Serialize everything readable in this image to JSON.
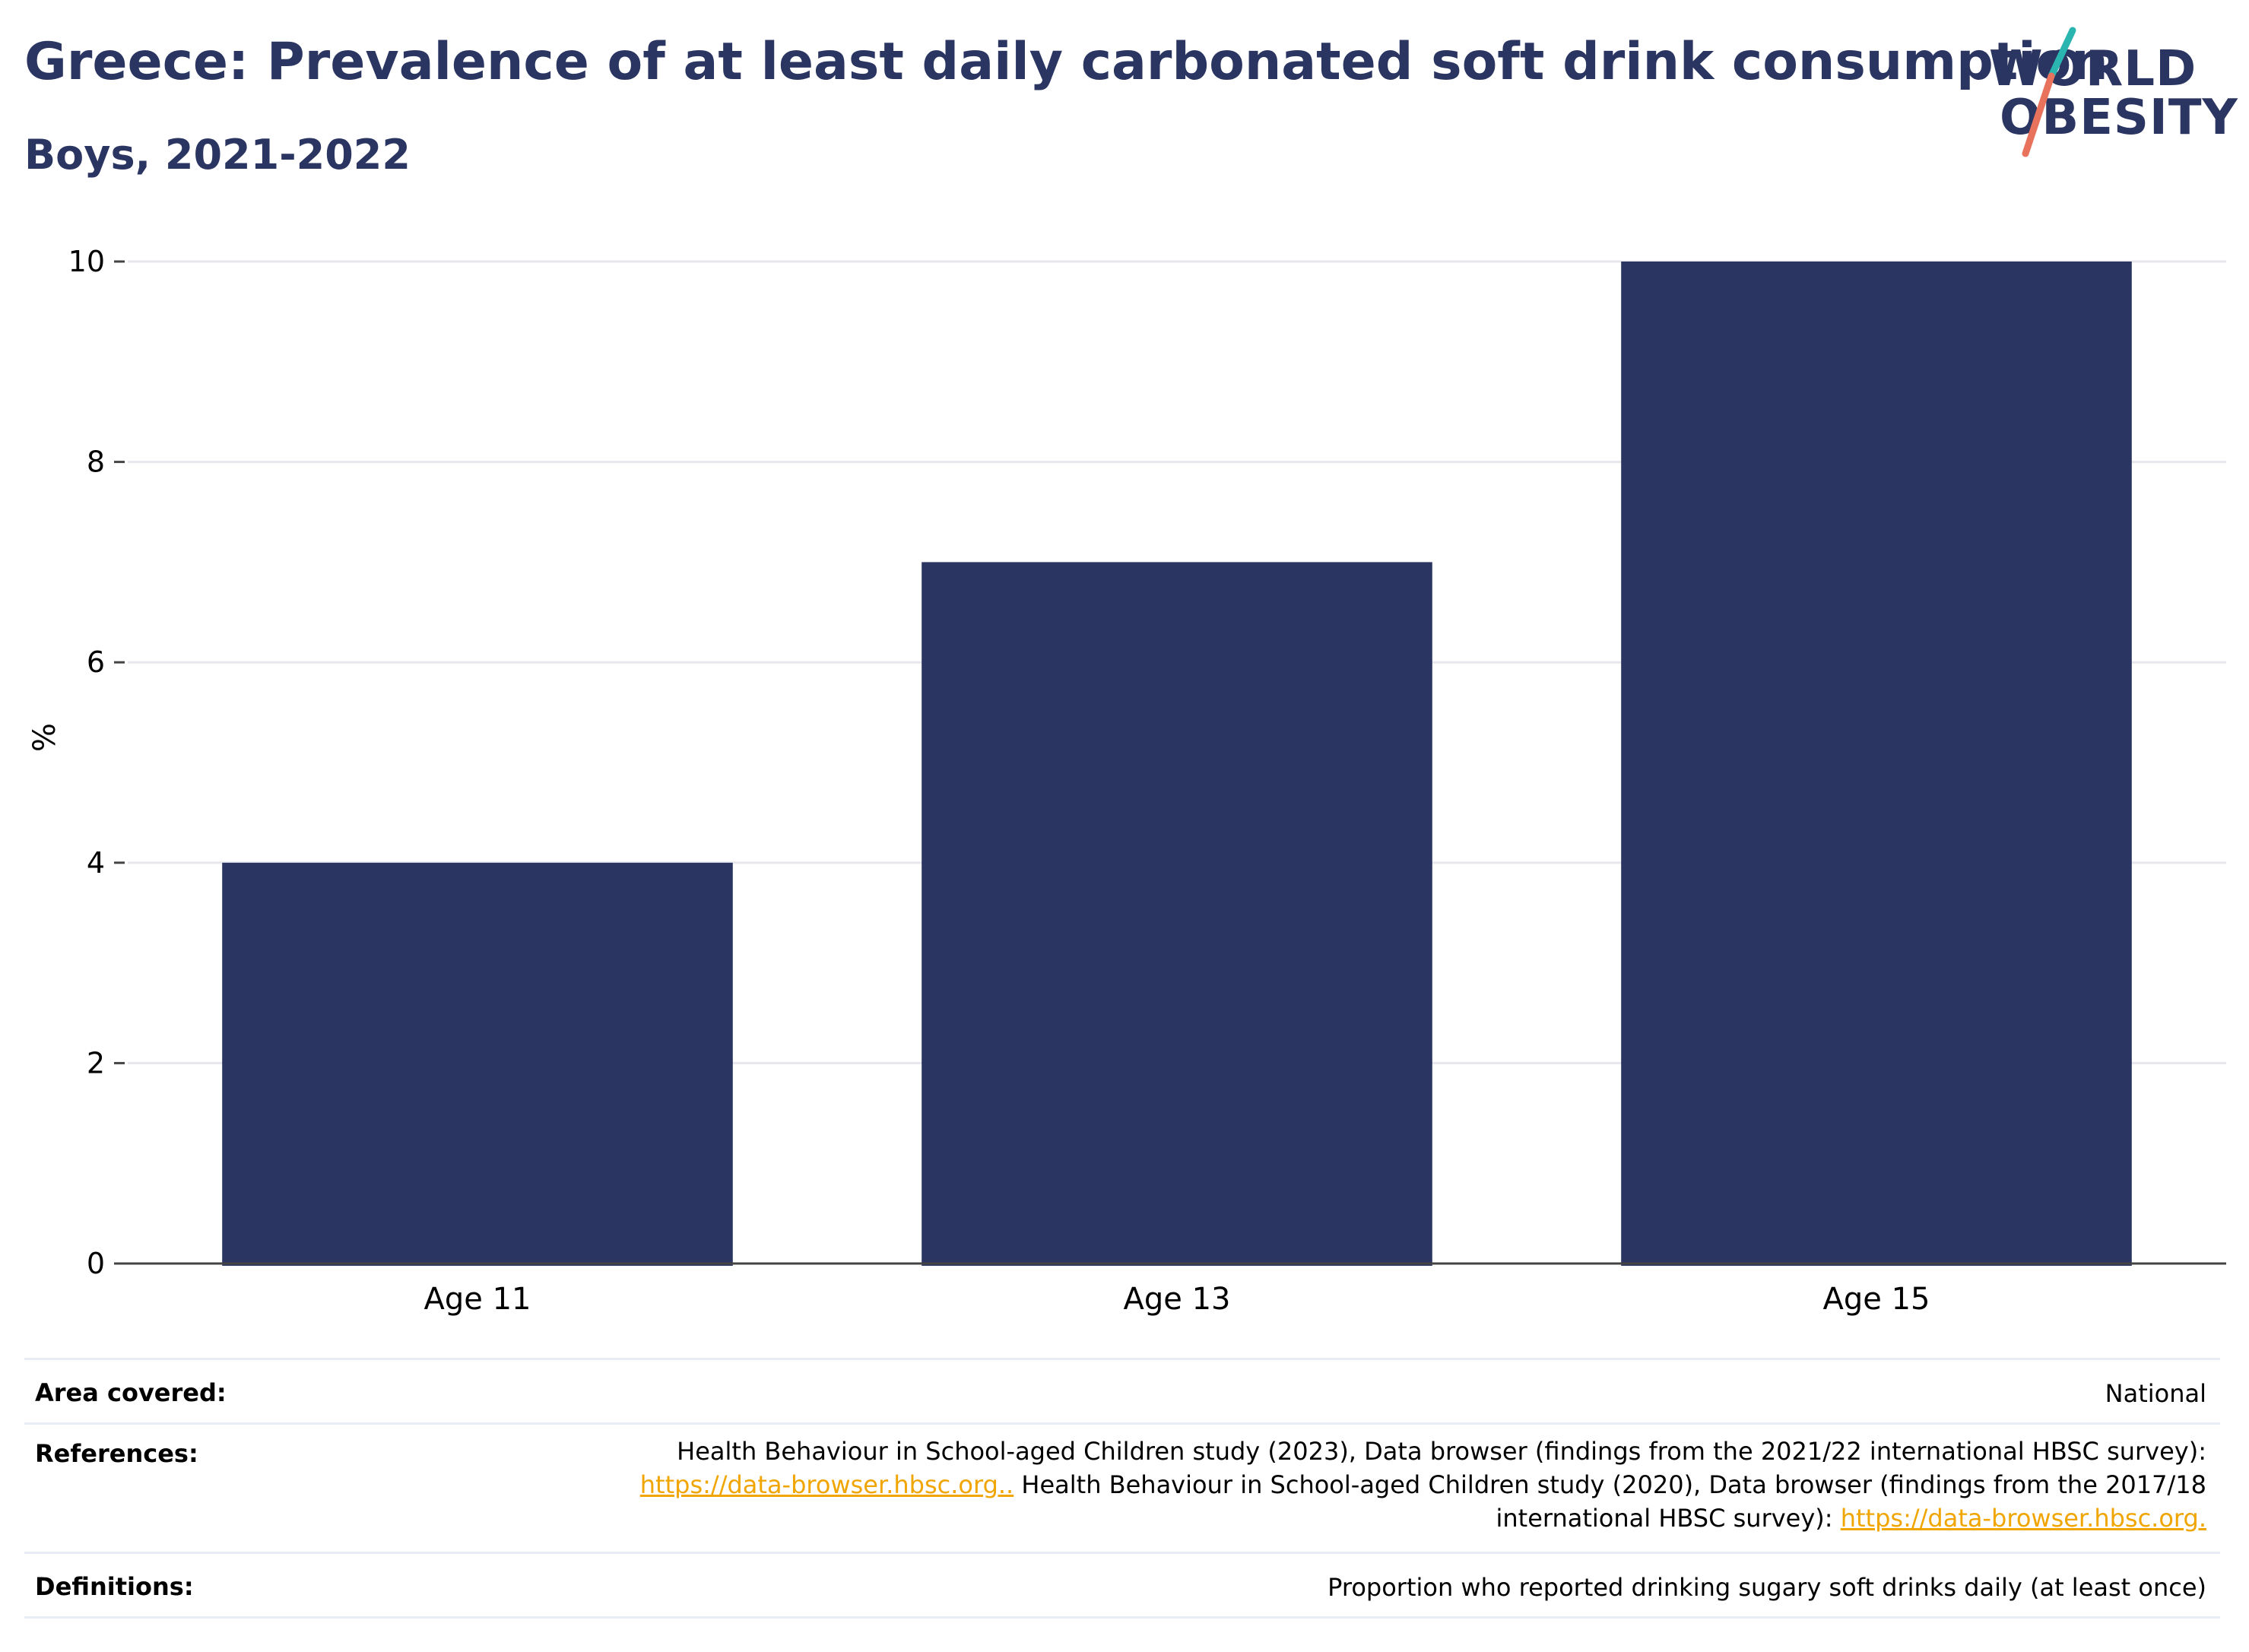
{
  "header": {
    "title": "Greece: Prevalence of at least daily carbonated soft drink consumption",
    "subtitle": "Boys, 2021-2022"
  },
  "logo": {
    "line1": "WORLD",
    "line2": "OBESITY"
  },
  "colors": {
    "bar": "#2b3561",
    "title": "#2b3561",
    "grid": "#e6e8ee",
    "link": "#f0a500",
    "logo_teal": "#2bb5b0",
    "logo_coral": "#e8725c"
  },
  "chart_data": {
    "type": "bar",
    "title": "Greece: Prevalence of at least daily carbonated soft drink consumption",
    "subtitle": "Boys, 2021-2022",
    "categories": [
      "Age 11",
      "Age 13",
      "Age 15"
    ],
    "values": [
      4,
      7,
      10
    ],
    "xlabel": "",
    "ylabel": "%",
    "ylim": [
      0,
      10
    ],
    "yticks": [
      0,
      2,
      4,
      6,
      8,
      10
    ],
    "grid": true,
    "legend": "none"
  },
  "footer": {
    "area_label": "Area covered:",
    "area_value": "National",
    "references_label": "References:",
    "references_line1": "Health Behaviour in School-aged Children study (2023), Data browser (findings from the 2021/22 international HBSC survey):",
    "references_link1": "https://data-browser.hbsc.org..",
    "references_line2": " Health Behaviour in School-aged Children study (2020), Data browser (findings from the 2017/18",
    "references_line3": "international HBSC survey): ",
    "references_link2": "https://data-browser.hbsc.org.",
    "definitions_label": "Definitions:",
    "definitions_value": "Proportion who reported drinking sugary soft drinks daily (at least once)"
  }
}
